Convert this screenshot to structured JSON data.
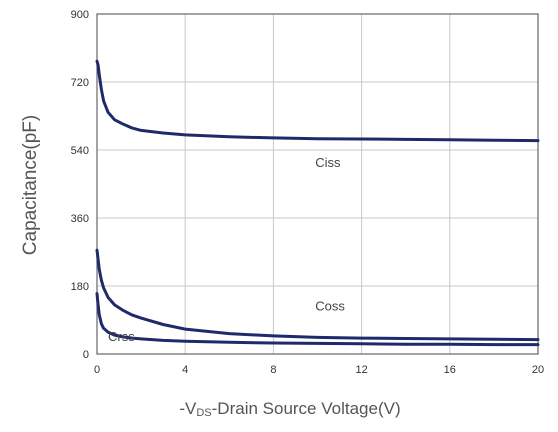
{
  "chart_data": {
    "type": "line",
    "xlabel_prefix": "-V",
    "xlabel_sub": "DS",
    "xlabel_suffix": "-Drain Source Voltage(V)",
    "ylabel": "Capacitance(pF)",
    "xlim": [
      0,
      20
    ],
    "ylim": [
      0,
      900
    ],
    "xticks": [
      0,
      4,
      8,
      12,
      16,
      20
    ],
    "yticks": [
      0,
      180,
      360,
      540,
      720,
      900
    ],
    "grid": true,
    "colors": {
      "line": "#1f2a6b",
      "grid": "#c8c8c8",
      "frame": "#666666"
    },
    "series": [
      {
        "name": "Ciss",
        "x": [
          0,
          0.05,
          0.1,
          0.2,
          0.3,
          0.5,
          0.8,
          1.2,
          1.6,
          2,
          3,
          4,
          6,
          8,
          10,
          12,
          14,
          16,
          18,
          20
        ],
        "y": [
          775,
          765,
          740,
          700,
          670,
          640,
          620,
          608,
          598,
          592,
          585,
          580,
          575,
          572,
          570,
          569,
          568,
          567,
          566,
          565
        ]
      },
      {
        "name": "Coss",
        "x": [
          0,
          0.05,
          0.1,
          0.2,
          0.3,
          0.5,
          0.8,
          1.2,
          1.6,
          2,
          3,
          4,
          6,
          8,
          10,
          12,
          14,
          16,
          18,
          20
        ],
        "y": [
          275,
          250,
          225,
          195,
          175,
          150,
          130,
          115,
          103,
          95,
          78,
          66,
          54,
          48,
          44,
          42,
          41,
          40,
          39,
          38
        ]
      },
      {
        "name": "Crss",
        "x": [
          0,
          0.05,
          0.1,
          0.2,
          0.3,
          0.5,
          0.8,
          1.2,
          1.6,
          2,
          3,
          4,
          6,
          8,
          10,
          12,
          14,
          16,
          18,
          20
        ],
        "y": [
          160,
          130,
          105,
          80,
          68,
          58,
          50,
          45,
          42,
          40,
          36,
          34,
          31,
          29,
          28,
          27,
          26,
          26,
          25,
          25
        ]
      }
    ],
    "series_labels": [
      {
        "text": "Ciss",
        "x": 9.9,
        "y": 495
      },
      {
        "text": "Coss",
        "x": 9.9,
        "y": 115
      },
      {
        "text": "Crss",
        "x": 0.5,
        "y": 35
      }
    ]
  }
}
